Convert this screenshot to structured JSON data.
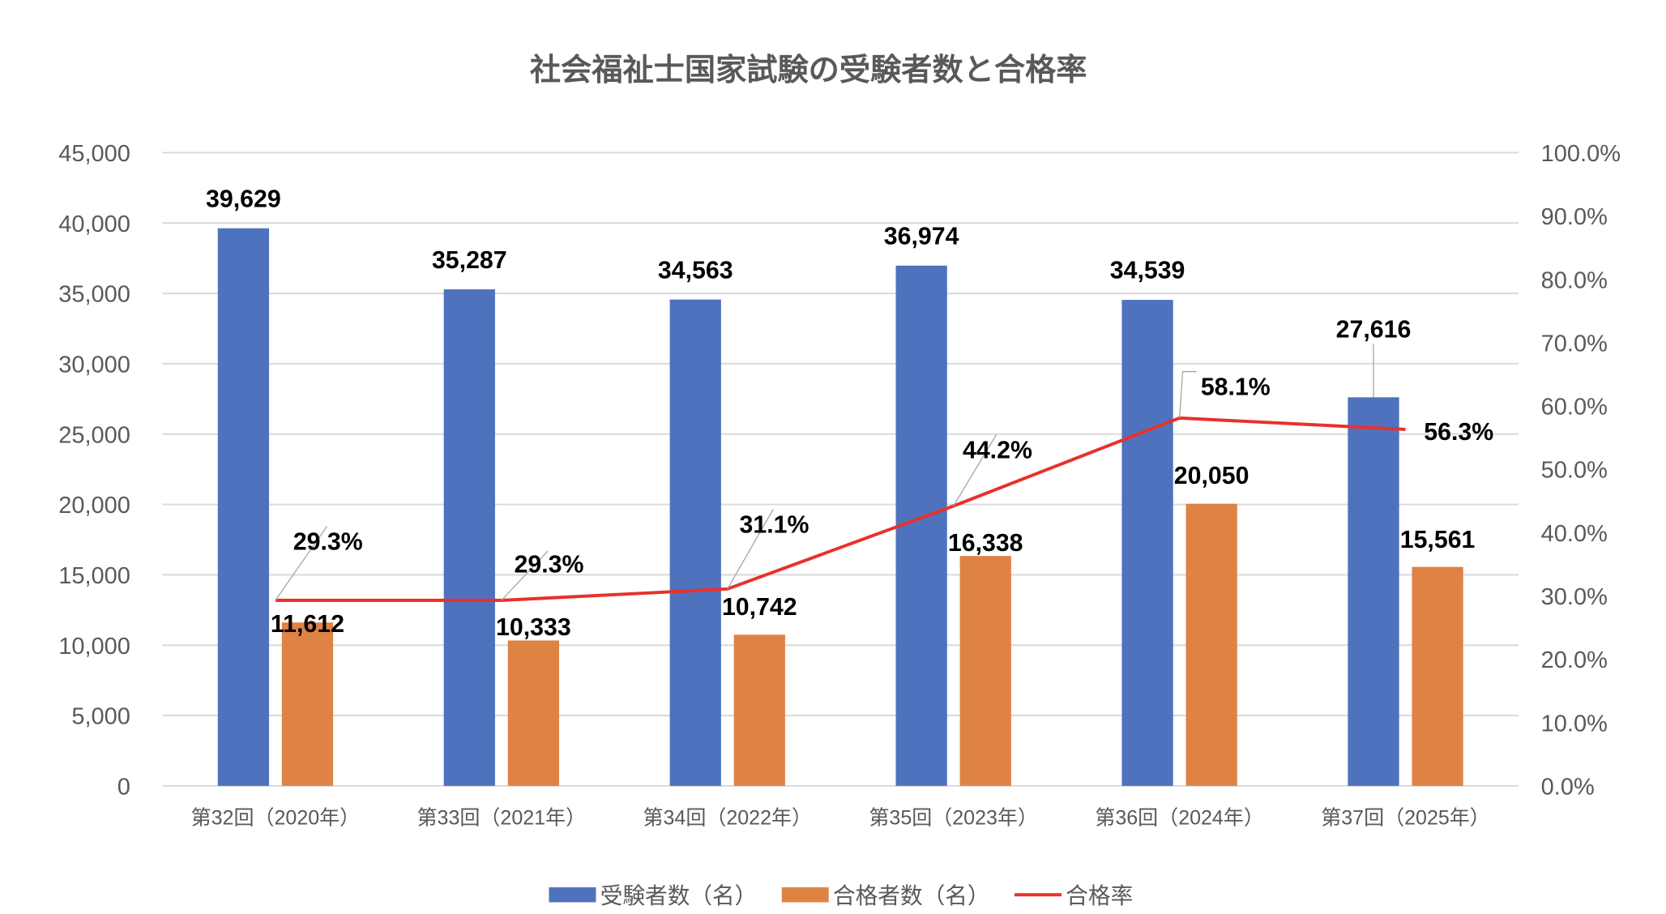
{
  "chart_data": {
    "type": "bar+line",
    "title": "社会福祉士国家試験の受験者数と合格率",
    "categories": [
      "第32回（2020年）",
      "第33回（2021年）",
      "第34回（2022年）",
      "第35回（2023年）",
      "第36回（2024年）",
      "第37回（2025年）"
    ],
    "series": [
      {
        "name": "受験者数（名）",
        "type": "bar",
        "axis": "left",
        "color": "#4F72BE",
        "values": [
          39629,
          35287,
          34563,
          36974,
          34539,
          27616
        ],
        "labels": [
          "39,629",
          "35,287",
          "34,563",
          "36,974",
          "34,539",
          "27,616"
        ]
      },
      {
        "name": "合格者数（名）",
        "type": "bar",
        "axis": "left",
        "color": "#DF8344",
        "values": [
          11612,
          10333,
          10742,
          16338,
          20050,
          15561
        ],
        "labels": [
          "11,612",
          "10,333",
          "10,742",
          "16,338",
          "20,050",
          "15,561"
        ]
      },
      {
        "name": "合格率",
        "type": "line",
        "axis": "right",
        "color": "#E8312A",
        "values": [
          29.3,
          29.3,
          31.1,
          44.2,
          58.1,
          56.3
        ],
        "labels": [
          "29.3%",
          "29.3%",
          "31.1%",
          "44.2%",
          "58.1%",
          "56.3%"
        ]
      }
    ],
    "y_left": {
      "range": [
        0,
        45000
      ],
      "ticks": [
        "0",
        "5,000",
        "10,000",
        "15,000",
        "20,000",
        "25,000",
        "30,000",
        "35,000",
        "40,000",
        "45,000"
      ]
    },
    "y_right": {
      "range": [
        0,
        100
      ],
      "ticks": [
        "0.0%",
        "10.0%",
        "20.0%",
        "30.0%",
        "40.0%",
        "50.0%",
        "60.0%",
        "70.0%",
        "80.0%",
        "90.0%",
        "100.0%"
      ]
    },
    "grid": true,
    "legend": "bottom"
  }
}
